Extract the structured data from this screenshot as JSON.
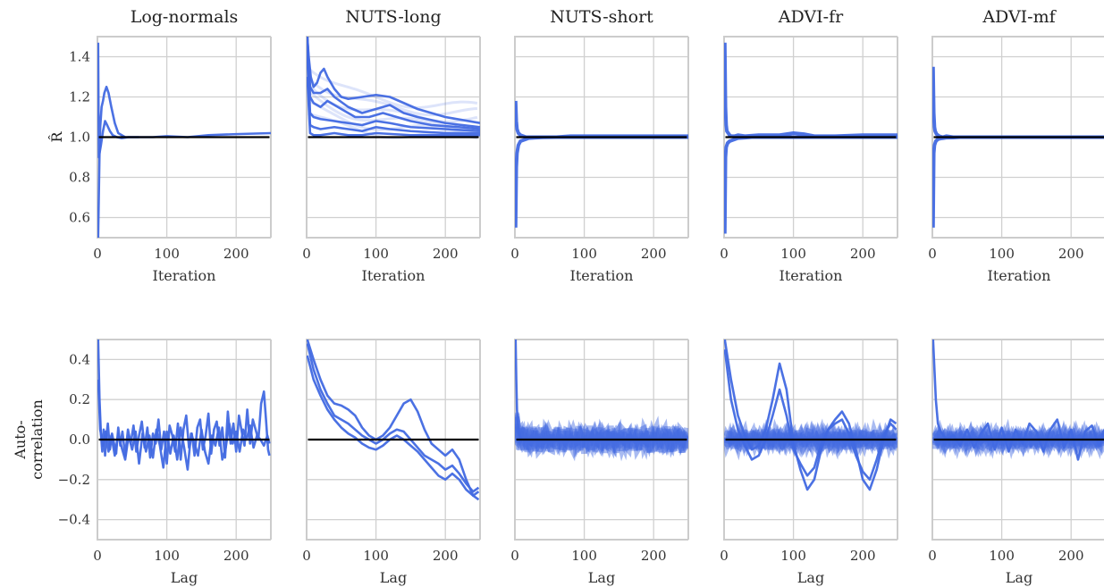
{
  "colors": {
    "series": "#4169e1",
    "reference": "#000000",
    "grid": "#d0d0d0",
    "frame": "#cccccc"
  },
  "chart_data": {
    "type": "line",
    "panels": [
      "Log-normals",
      "NUTS-long",
      "NUTS-short",
      "ADVI-fr",
      "ADVI-mf"
    ],
    "grid": true,
    "rows": [
      {
        "ylabel": "R̂",
        "xlabel": "Iteration",
        "xlim": [
          0,
          250
        ],
        "ylim": [
          0.5,
          1.5
        ],
        "xticks": [
          0,
          100,
          200
        ],
        "yticks": [
          0.6,
          0.8,
          1.0,
          1.2,
          1.4
        ],
        "ytick_labels": [
          "0.6",
          "0.8",
          "1.0",
          "1.2",
          "1.4"
        ],
        "reference_line": 1.0
      },
      {
        "ylabel": "Auto-\ncorrelation",
        "xlabel": "Lag",
        "xlim": [
          0,
          250
        ],
        "ylim": [
          -0.5,
          0.5
        ],
        "xticks": [
          0,
          100,
          200
        ],
        "yticks": [
          -0.4,
          -0.2,
          0.0,
          0.2,
          0.4
        ],
        "ytick_labels": [
          "−0.4",
          "−0.2",
          "0.0",
          "0.2",
          "0.4"
        ],
        "reference_line": 0.0
      }
    ],
    "rhat_series": [
      {
        "panel": 0,
        "x": [
          1,
          2,
          3,
          4,
          6,
          8,
          10,
          13,
          16,
          20,
          25,
          30,
          40,
          50,
          60
        ],
        "y": [
          1.47,
          0.9,
          0.92,
          1.05,
          1.15,
          1.18,
          1.22,
          1.25,
          1.22,
          1.15,
          1.07,
          1.02,
          1.0,
          1.0,
          1.0
        ]
      },
      {
        "panel": 0,
        "x": [
          1,
          3,
          5,
          8,
          11,
          14,
          18,
          22,
          28,
          35,
          45,
          60,
          80,
          100,
          130,
          160,
          200,
          250
        ],
        "y": [
          0.5,
          0.92,
          0.96,
          1.03,
          1.08,
          1.06,
          1.03,
          1.01,
          1.0,
          0.995,
          1.0,
          1.0,
          1.0,
          1.005,
          1.0,
          1.01,
          1.015,
          1.02
        ]
      },
      {
        "panel": 1,
        "x": [
          1,
          3,
          6,
          10,
          15,
          20,
          25,
          30,
          40,
          50,
          60,
          80,
          100,
          120,
          140,
          160,
          200,
          250
        ],
        "y": [
          1.5,
          1.4,
          1.3,
          1.25,
          1.27,
          1.32,
          1.34,
          1.3,
          1.24,
          1.2,
          1.19,
          1.2,
          1.21,
          1.2,
          1.17,
          1.14,
          1.1,
          1.07
        ]
      },
      {
        "panel": 1,
        "x": [
          1,
          5,
          10,
          20,
          30,
          40,
          60,
          80,
          100,
          120,
          140,
          160,
          200,
          250
        ],
        "y": [
          1.5,
          1.25,
          1.22,
          1.22,
          1.24,
          1.2,
          1.15,
          1.12,
          1.14,
          1.16,
          1.12,
          1.1,
          1.07,
          1.05
        ]
      },
      {
        "panel": 1,
        "x": [
          1,
          5,
          10,
          20,
          30,
          50,
          70,
          90,
          110,
          130,
          150,
          180,
          220,
          250
        ],
        "y": [
          1.5,
          1.2,
          1.17,
          1.15,
          1.18,
          1.14,
          1.1,
          1.1,
          1.12,
          1.1,
          1.08,
          1.06,
          1.05,
          1.04
        ]
      },
      {
        "panel": 1,
        "x": [
          1,
          5,
          10,
          20,
          40,
          60,
          80,
          100,
          120,
          150,
          200,
          250
        ],
        "y": [
          1.45,
          1.12,
          1.1,
          1.09,
          1.08,
          1.07,
          1.06,
          1.08,
          1.07,
          1.05,
          1.04,
          1.03
        ]
      },
      {
        "panel": 1,
        "x": [
          1,
          5,
          10,
          20,
          40,
          60,
          80,
          100,
          120,
          150,
          200,
          250
        ],
        "y": [
          1.4,
          1.06,
          1.05,
          1.04,
          1.05,
          1.04,
          1.03,
          1.05,
          1.04,
          1.03,
          1.02,
          1.02
        ]
      },
      {
        "panel": 1,
        "x": [
          1,
          5,
          10,
          20,
          40,
          60,
          80,
          100,
          150,
          200,
          250
        ],
        "y": [
          1.3,
          1.02,
          1.01,
          1.01,
          1.02,
          1.01,
          1.01,
          1.02,
          1.01,
          1.01,
          1.01
        ]
      },
      {
        "panel": 2,
        "x": [
          1,
          2,
          3,
          5,
          8,
          12,
          16,
          20,
          30,
          40,
          60,
          80,
          120,
          160,
          200,
          250
        ],
        "y": [
          1.18,
          1.08,
          1.04,
          1.02,
          1.01,
          1.005,
          1.0,
          1.0,
          1.0,
          1.0,
          1.0,
          1.005,
          1.005,
          1.005,
          1.005,
          1.005
        ]
      },
      {
        "panel": 2,
        "x": [
          1,
          2,
          3,
          5,
          8,
          12,
          16,
          20,
          30,
          40,
          60,
          80,
          120,
          160,
          200,
          250
        ],
        "y": [
          0.55,
          0.85,
          0.92,
          0.96,
          0.98,
          0.985,
          0.99,
          0.995,
          0.997,
          0.999,
          1.0,
          1.0,
          1.0,
          1.0,
          1.0,
          1.0
        ]
      },
      {
        "panel": 3,
        "x": [
          1,
          2,
          3,
          4,
          6,
          8,
          10,
          15,
          20,
          30,
          50,
          80,
          100,
          115,
          130,
          160,
          200,
          250
        ],
        "y": [
          1.47,
          1.15,
          1.06,
          1.03,
          1.02,
          1.01,
          1.005,
          1.005,
          1.01,
          1.005,
          1.01,
          1.01,
          1.02,
          1.015,
          1.005,
          1.005,
          1.01,
          1.01
        ]
      },
      {
        "panel": 3,
        "x": [
          1,
          2,
          3,
          5,
          8,
          12,
          16,
          20,
          30,
          40,
          60,
          80,
          120,
          160,
          200,
          250
        ],
        "y": [
          0.52,
          0.9,
          0.95,
          0.97,
          0.98,
          0.985,
          0.99,
          0.995,
          0.997,
          1.0,
          1.0,
          1.0,
          1.0,
          1.0,
          1.0,
          1.0
        ]
      },
      {
        "panel": 4,
        "x": [
          1,
          2,
          3,
          4,
          6,
          8,
          10,
          15,
          20,
          30,
          40,
          60,
          100,
          150,
          200,
          250
        ],
        "y": [
          1.35,
          1.12,
          1.05,
          1.03,
          1.015,
          1.01,
          1.005,
          1.0,
          1.005,
          1.0,
          1.0,
          1.0,
          1.0,
          1.0,
          1.0,
          1.0
        ]
      },
      {
        "panel": 4,
        "x": [
          1,
          2,
          3,
          5,
          8,
          12,
          16,
          20,
          30,
          40,
          60,
          100,
          150,
          200,
          250
        ],
        "y": [
          0.55,
          0.92,
          0.96,
          0.98,
          0.99,
          0.993,
          0.995,
          0.997,
          0.998,
          1.0,
          1.0,
          1.0,
          1.0,
          1.0,
          1.0
        ]
      }
    ],
    "acf_series": [
      {
        "panel": 0,
        "x": [
          1,
          3,
          5,
          7,
          9,
          11,
          13,
          15,
          18,
          21,
          24,
          27,
          30,
          33,
          36,
          40,
          44,
          48,
          52,
          56,
          60,
          64,
          68,
          72,
          76,
          80,
          84,
          88,
          92,
          96,
          100,
          104,
          108,
          112,
          116,
          120,
          124,
          128,
          132,
          136,
          140,
          144,
          148,
          152,
          156,
          160,
          164,
          168,
          172,
          176,
          180,
          184,
          188,
          192,
          196,
          200,
          204,
          208,
          212,
          216,
          220,
          224,
          228,
          232,
          236,
          240,
          243,
          246,
          248
        ],
        "y": [
          0.5,
          0.2,
          0.03,
          -0.06,
          0.05,
          -0.08,
          0.02,
          0.08,
          -0.05,
          0.03,
          -0.02,
          -0.07,
          0.06,
          -0.03,
          0.04,
          -0.08,
          0.05,
          -0.02,
          0.07,
          -0.06,
          0.02,
          0.09,
          -0.04,
          0.06,
          -0.09,
          0.03,
          -0.02,
          0.1,
          -0.05,
          0.04,
          -0.12,
          0.07,
          0.02,
          -0.06,
          0.08,
          -0.1,
          0.05,
          0.12,
          -0.04,
          0.03,
          -0.08,
          0.06,
          0.1,
          -0.05,
          0.02,
          0.13,
          -0.07,
          0.05,
          0.09,
          -0.03,
          0.06,
          -0.09,
          0.14,
          -0.02,
          0.08,
          -0.06,
          0.12,
          0.04,
          -0.03,
          0.15,
          -0.02,
          0.1,
          0.05,
          0.0,
          0.18,
          0.24,
          0.1,
          -0.05,
          -0.08
        ]
      },
      {
        "panel": 0,
        "x": [
          1,
          4,
          8,
          12,
          16,
          20,
          25,
          30,
          35,
          40,
          45,
          50,
          55,
          60,
          65,
          70,
          75,
          80,
          85,
          90,
          95,
          100,
          105,
          110,
          115,
          120,
          125,
          130,
          135,
          140,
          145,
          150,
          155,
          160,
          165,
          170,
          175,
          180,
          185,
          190,
          195,
          200,
          205,
          210,
          215,
          220,
          225,
          230,
          235,
          240,
          245,
          248
        ],
        "y": [
          0.3,
          0.05,
          -0.03,
          0.04,
          -0.06,
          0.02,
          -0.08,
          0.03,
          -0.04,
          -0.1,
          0.02,
          -0.05,
          0.04,
          -0.12,
          0.03,
          -0.06,
          0.02,
          -0.09,
          0.05,
          -0.03,
          -0.14,
          0.04,
          -0.07,
          0.02,
          -0.1,
          0.06,
          -0.04,
          -0.15,
          0.03,
          -0.02,
          -0.08,
          0.05,
          -0.06,
          -0.12,
          0.02,
          -0.03,
          0.06,
          -0.1,
          -0.04,
          0.08,
          -0.02,
          0.04,
          -0.06,
          0.05,
          0.0,
          0.07,
          -0.04,
          0.02,
          0.0,
          -0.03,
          0.02,
          -0.02
        ]
      },
      {
        "panel": 1,
        "x": [
          1,
          10,
          20,
          30,
          40,
          50,
          60,
          70,
          80,
          90,
          100,
          110,
          120,
          130,
          140,
          150,
          160,
          170,
          180,
          190,
          200,
          210,
          220,
          230,
          240,
          248
        ],
        "y": [
          0.5,
          0.4,
          0.3,
          0.22,
          0.18,
          0.17,
          0.15,
          0.12,
          0.06,
          0.02,
          0.0,
          0.02,
          0.06,
          0.12,
          0.18,
          0.2,
          0.14,
          0.05,
          -0.02,
          -0.05,
          -0.08,
          -0.05,
          -0.1,
          -0.2,
          -0.28,
          -0.3
        ]
      },
      {
        "panel": 1,
        "x": [
          1,
          10,
          20,
          30,
          40,
          50,
          60,
          70,
          80,
          90,
          100,
          110,
          120,
          130,
          140,
          150,
          160,
          170,
          180,
          190,
          200,
          210,
          220,
          230,
          240,
          248
        ],
        "y": [
          0.48,
          0.35,
          0.25,
          0.18,
          0.12,
          0.1,
          0.08,
          0.05,
          0.02,
          0.0,
          -0.02,
          0.0,
          0.03,
          0.05,
          0.04,
          0.0,
          -0.04,
          -0.08,
          -0.1,
          -0.12,
          -0.15,
          -0.13,
          -0.17,
          -0.22,
          -0.26,
          -0.24
        ]
      },
      {
        "panel": 1,
        "x": [
          1,
          10,
          20,
          30,
          40,
          50,
          60,
          70,
          80,
          90,
          100,
          110,
          120,
          130,
          140,
          150,
          160,
          170,
          180,
          190,
          200,
          210,
          220,
          230,
          240,
          248
        ],
        "y": [
          0.42,
          0.3,
          0.22,
          0.15,
          0.1,
          0.06,
          0.03,
          0.01,
          -0.02,
          -0.04,
          -0.05,
          -0.03,
          0.0,
          0.02,
          0.0,
          -0.03,
          -0.06,
          -0.1,
          -0.14,
          -0.18,
          -0.2,
          -0.17,
          -0.2,
          -0.25,
          -0.28,
          -0.26
        ]
      },
      {
        "panel": 2,
        "x": [
          1,
          2,
          3,
          4,
          5,
          6,
          8,
          10
        ],
        "y": [
          0.5,
          0.3,
          0.15,
          0.08,
          0.05,
          0.03,
          0.01,
          0.0
        ]
      },
      {
        "panel": 3,
        "x": [
          1,
          10,
          20,
          30,
          40,
          50,
          60,
          70,
          80,
          90,
          100,
          110,
          120,
          130,
          140,
          150,
          160,
          170,
          180,
          190,
          200,
          210,
          220,
          230,
          240,
          248
        ],
        "y": [
          0.5,
          0.3,
          0.12,
          0.02,
          -0.05,
          -0.03,
          0.05,
          0.2,
          0.38,
          0.25,
          -0.02,
          -0.15,
          -0.25,
          -0.2,
          -0.05,
          0.05,
          0.1,
          0.14,
          0.08,
          -0.05,
          -0.2,
          -0.25,
          -0.15,
          0.0,
          0.1,
          0.08
        ]
      },
      {
        "panel": 3,
        "x": [
          1,
          10,
          20,
          30,
          40,
          50,
          60,
          70,
          80,
          90,
          100,
          110,
          120,
          130,
          140,
          150,
          160,
          170,
          180,
          190,
          200,
          210,
          220,
          230,
          240,
          248
        ],
        "y": [
          0.45,
          0.2,
          0.05,
          -0.03,
          -0.1,
          -0.08,
          0.0,
          0.12,
          0.25,
          0.12,
          -0.05,
          -0.12,
          -0.18,
          -0.14,
          -0.02,
          0.05,
          0.08,
          0.1,
          0.03,
          -0.08,
          -0.16,
          -0.2,
          -0.1,
          0.02,
          0.08,
          0.05
        ]
      },
      {
        "panel": 4,
        "x": [
          1,
          3,
          5,
          8,
          12,
          16,
          20,
          30,
          40,
          50,
          60,
          70,
          80,
          90,
          100,
          110,
          120,
          130,
          140,
          150,
          160,
          170,
          180,
          190,
          200,
          210,
          220,
          230,
          240,
          248
        ],
        "y": [
          0.5,
          0.35,
          0.2,
          0.08,
          0.04,
          0.02,
          0.0,
          0.02,
          -0.03,
          0.05,
          -0.04,
          0.03,
          0.08,
          -0.05,
          0.06,
          -0.06,
          0.05,
          -0.02,
          0.08,
          0.04,
          -0.06,
          0.05,
          0.1,
          -0.04,
          0.05,
          -0.1,
          0.04,
          0.07,
          -0.03,
          0.05
        ]
      }
    ]
  }
}
